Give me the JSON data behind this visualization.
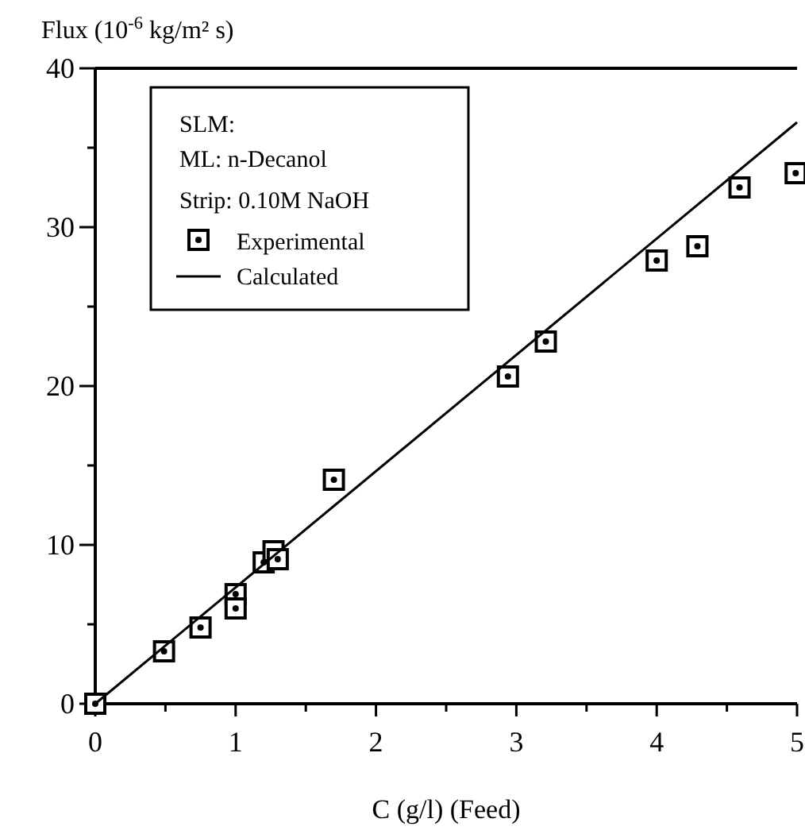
{
  "chart_data": {
    "type": "scatter",
    "xlabel": "C (g/l) (Feed)",
    "ylabel": "Flux (10$^{-6}$ kg/m² s)",
    "legend_title": "SLM:",
    "annotations": [
      "ML: n-Decanol",
      "Strip: 0.10M NaOH"
    ],
    "xlim": [
      0,
      5
    ],
    "ylim": [
      0,
      40
    ],
    "xticks": [
      0,
      {
        "value": 0.5,
        "label": null
      },
      1,
      {
        "value": 1.5,
        "label": null
      },
      2,
      {
        "value": 2.5,
        "label": null
      },
      3,
      {
        "value": 3.5,
        "label": null
      },
      4,
      {
        "value": 4.5,
        "label": null
      },
      5
    ],
    "yticks": [
      0,
      {
        "value": 5,
        "label": null
      },
      10,
      {
        "value": 15,
        "label": null
      },
      20,
      {
        "value": 25,
        "label": null
      },
      30,
      {
        "value": 35,
        "label": null
      },
      40
    ],
    "legend": "top left",
    "grid": false,
    "series": [
      {
        "name": "Experimental",
        "marker": "square",
        "color": "#000000",
        "x": [
          0,
          0.49,
          0.75,
          1.0,
          1.0,
          1.2,
          1.27,
          1.3,
          1.7,
          2.94,
          3.21,
          4.0,
          4.29,
          4.59,
          4.99
        ],
        "values": [
          0,
          3.3,
          4.8,
          6.9,
          6.0,
          8.9,
          9.6,
          9.1,
          14.1,
          20.6,
          22.8,
          27.9,
          28.8,
          32.5,
          33.4
        ]
      },
      {
        "name": "Calculated",
        "type": "line",
        "line_style": "solid",
        "color": "#000000",
        "x": [
          0,
          5
        ],
        "values": [
          0,
          36.6
        ]
      }
    ]
  }
}
